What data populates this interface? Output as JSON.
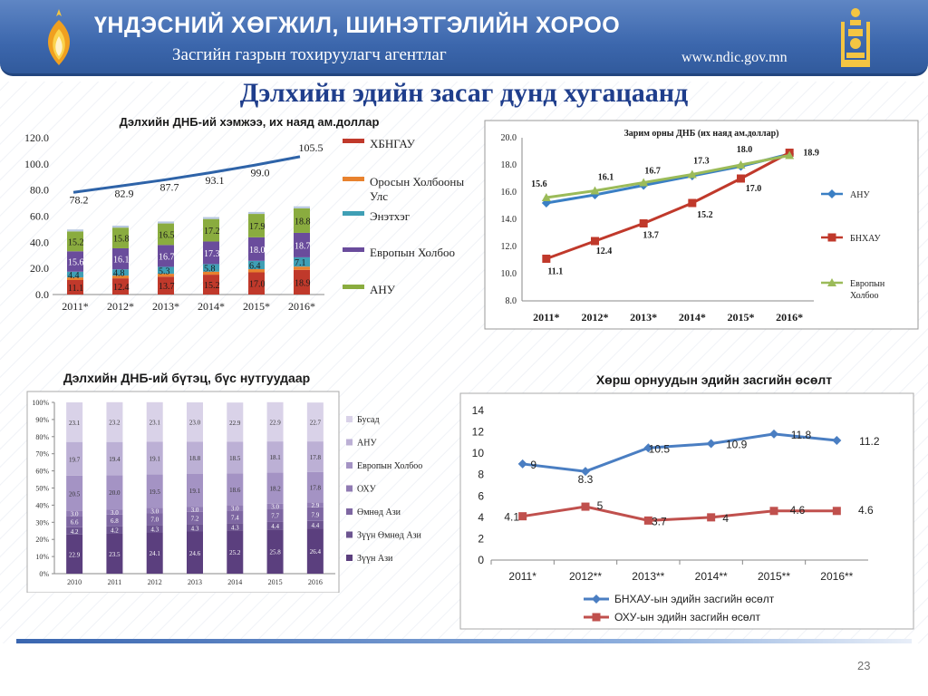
{
  "header": {
    "title": "ҮНДЭСНИЙ ХӨГЖИЛ, ШИНЭТГЭЛИЙН ХОРОО",
    "subtitle": "Засгийн газрын тохируулагч агентлаг",
    "url": "www.ndic.gov.mn"
  },
  "main_title": "Дэлхийн эдийн засаг дунд хугацаанд",
  "page_number": "23",
  "colors": {
    "header": "#3c67ad",
    "title": "#1f3e8c",
    "footer": "#3a66b0"
  },
  "chart_data": [
    {
      "id": "chart1",
      "type": "bar",
      "stacked": true,
      "title": "Дэлхийн ДНБ-ий хэмжээ, их наяд ам.доллар",
      "categories": [
        "2011*",
        "2012*",
        "2013*",
        "2014*",
        "2015*",
        "2016*"
      ],
      "ylim": [
        0,
        120
      ],
      "yticks": [
        "0.0",
        "20.0",
        "40.0",
        "60.0",
        "80.0",
        "100.0",
        "120.0"
      ],
      "series": [
        {
          "name": "ХБНГАУ",
          "color": "#c0392b",
          "values": [
            11.1,
            12.4,
            13.7,
            15.2,
            17.0,
            18.9
          ]
        },
        {
          "name": "Оросын Холбооны Улс",
          "color": "#e8822e",
          "values": [
            2.0,
            2.1,
            2.2,
            2.3,
            2.4,
            2.5
          ]
        },
        {
          "name": "Энэтхэг",
          "color": "#3f9fb5",
          "values": [
            4.4,
            4.8,
            5.3,
            5.8,
            6.4,
            7.1
          ]
        },
        {
          "name": "Европын Холбоо",
          "color": "#6a4c9c",
          "values": [
            15.6,
            16.1,
            16.7,
            17.3,
            18.0,
            18.7
          ]
        },
        {
          "name": "АНУ",
          "color": "#8aac3f",
          "values": [
            15.2,
            15.8,
            16.5,
            17.2,
            17.9,
            18.8
          ]
        }
      ],
      "totals_line": {
        "color": "#2e63a8",
        "values": [
          78.2,
          82.9,
          87.7,
          93.1,
          99.0,
          105.5
        ]
      }
    },
    {
      "id": "chart2",
      "type": "line",
      "title": "Зарим орны ДНБ (их наяд ам.доллар)",
      "categories": [
        "2011*",
        "2012*",
        "2013*",
        "2014*",
        "2015*",
        "2016*"
      ],
      "ylim": [
        8,
        20
      ],
      "yticks": [
        "8.0",
        "10.0",
        "12.0",
        "14.0",
        "16.0",
        "18.0",
        "20.0"
      ],
      "series": [
        {
          "name": "АНУ",
          "color": "#3a7fc4",
          "marker": "diamond",
          "values": [
            15.2,
            15.8,
            16.5,
            17.2,
            17.9,
            18.8
          ]
        },
        {
          "name": "БНХАУ",
          "color": "#c0392b",
          "marker": "square",
          "values": [
            11.1,
            12.4,
            13.7,
            15.2,
            17.0,
            18.9
          ]
        },
        {
          "name": "Европын Холбоо",
          "color": "#9bbb59",
          "marker": "triangle",
          "values": [
            15.6,
            16.1,
            16.7,
            17.3,
            18.0,
            18.7
          ]
        }
      ]
    },
    {
      "id": "chart3",
      "type": "bar",
      "stacked": true,
      "percent": true,
      "title": "Дэлхийн ДНБ-ий бүтэц, бүс нутгуудаар",
      "categories": [
        "2010",
        "2011",
        "2012",
        "2013",
        "2014",
        "2015",
        "2016"
      ],
      "ylim": [
        0,
        100
      ],
      "yticks": [
        "0%",
        "10%",
        "20%",
        "30%",
        "40%",
        "50%",
        "60%",
        "70%",
        "80%",
        "90%",
        "100%"
      ],
      "series": [
        {
          "name": "Зүүн Ази",
          "color": "#5b3f7e",
          "values": [
            22.9,
            23.5,
            24.1,
            24.6,
            25.2,
            25.8,
            26.4
          ]
        },
        {
          "name": "Зүүн Өмнөд Ази",
          "color": "#6c5490",
          "values": [
            4.2,
            4.2,
            4.3,
            4.3,
            4.3,
            4.4,
            4.4
          ]
        },
        {
          "name": "Өмнөд Ази",
          "color": "#7e67a2",
          "values": [
            6.6,
            6.8,
            7.0,
            7.2,
            7.4,
            7.7,
            7.9
          ]
        },
        {
          "name": "ОХУ",
          "color": "#907bb3",
          "values": [
            3.0,
            3.0,
            3.0,
            3.0,
            3.0,
            3.0,
            2.9
          ]
        },
        {
          "name": "Европын Холбоо",
          "color": "#a493c4",
          "values": [
            20.5,
            20.0,
            19.5,
            19.1,
            18.6,
            18.2,
            17.8
          ]
        },
        {
          "name": "АНУ",
          "color": "#bcb0d5",
          "values": [
            19.7,
            19.4,
            19.1,
            18.8,
            18.5,
            18.1,
            17.8
          ]
        },
        {
          "name": "Бусад",
          "color": "#d9d2e8",
          "values": [
            23.1,
            23.2,
            23.1,
            23.0,
            22.9,
            22.9,
            22.7
          ]
        }
      ]
    },
    {
      "id": "chart4",
      "type": "line",
      "title": "Хөрш орнуудын эдийн засгийн өсөлт",
      "categories": [
        "2011*",
        "2012**",
        "2013**",
        "2014**",
        "2015**",
        "2016**"
      ],
      "ylim": [
        0,
        14
      ],
      "yticks": [
        "0",
        "2",
        "4",
        "6",
        "8",
        "10",
        "12",
        "14"
      ],
      "series": [
        {
          "name": "БНХАУ-ын эдийн засгийн өсөлт",
          "color": "#4a7ec2",
          "marker": "diamond",
          "values": [
            9,
            8.3,
            10.5,
            10.9,
            11.8,
            11.2
          ]
        },
        {
          "name": "ОХУ-ын эдийн засгийн өсөлт",
          "color": "#c0504d",
          "marker": "square",
          "values": [
            4.1,
            5,
            3.7,
            4,
            4.6,
            4.6
          ]
        }
      ]
    }
  ]
}
